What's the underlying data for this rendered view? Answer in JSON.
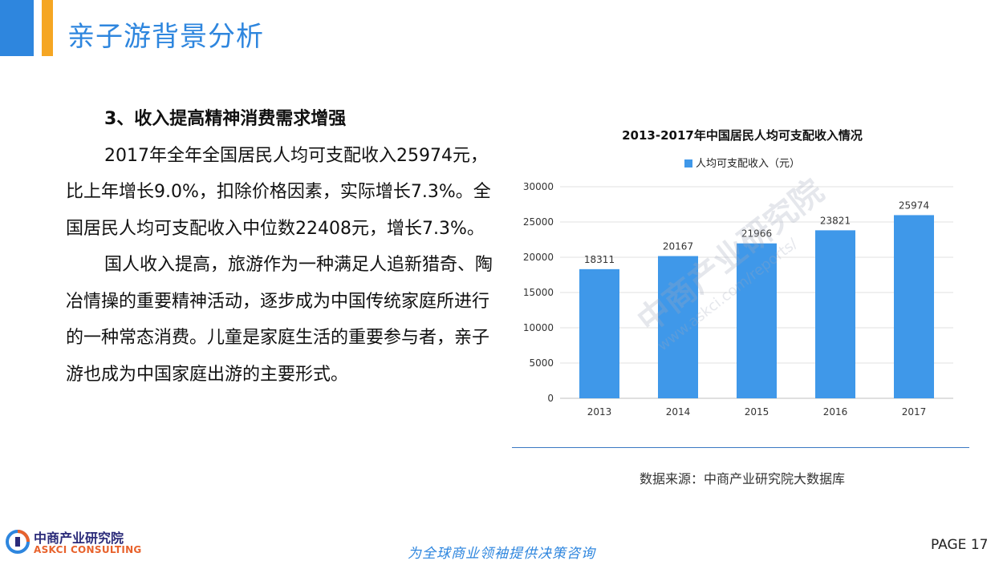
{
  "header": {
    "title": "亲子游背景分析"
  },
  "content": {
    "heading": "3、收入提高精神消费需求增强",
    "paragraph1": "2017年全年全国居民人均可支配收入25974元，比上年增长9.0%，扣除价格因素，实际增长7.3%。全国居民人均可支配收入中位数22408元，增长7.3%。",
    "paragraph2": "国人收入提高，旅游作为一种满足人追新猎奇、陶冶情操的重要精神活动，逐步成为中国传统家庭所进行的一种常态消费。儿童是家庭生活的重要参与者，亲子游也成为中国家庭出游的主要形式。"
  },
  "chart_data": {
    "type": "bar",
    "title": "2013-2017年中国居民人均可支配收入情况",
    "categories": [
      "2013",
      "2014",
      "2015",
      "2016",
      "2017"
    ],
    "series": [
      {
        "name": "人均可支配收入（元）",
        "values": [
          18311,
          20167,
          21966,
          23821,
          25974
        ],
        "color": "#3f98e9"
      }
    ],
    "ylim": [
      0,
      30000
    ],
    "yticks": [
      0,
      5000,
      10000,
      15000,
      20000,
      25000,
      30000
    ],
    "grid": true,
    "legend": "top",
    "data_labels": true
  },
  "source": "数据来源：中商产业研究院大数据库",
  "watermark": {
    "cn": "中商产业研究院",
    "url": "www.askci.com/reports/"
  },
  "footer": {
    "logo_cn": "中商产业研究院",
    "logo_en": "ASKCI CONSULTING",
    "slogan": "为全球商业领袖提供决策咨询",
    "page": "PAGE  17"
  },
  "colors": {
    "accent_blue": "#2e86de",
    "accent_orange": "#f5a623",
    "bar": "#3f98e9"
  }
}
